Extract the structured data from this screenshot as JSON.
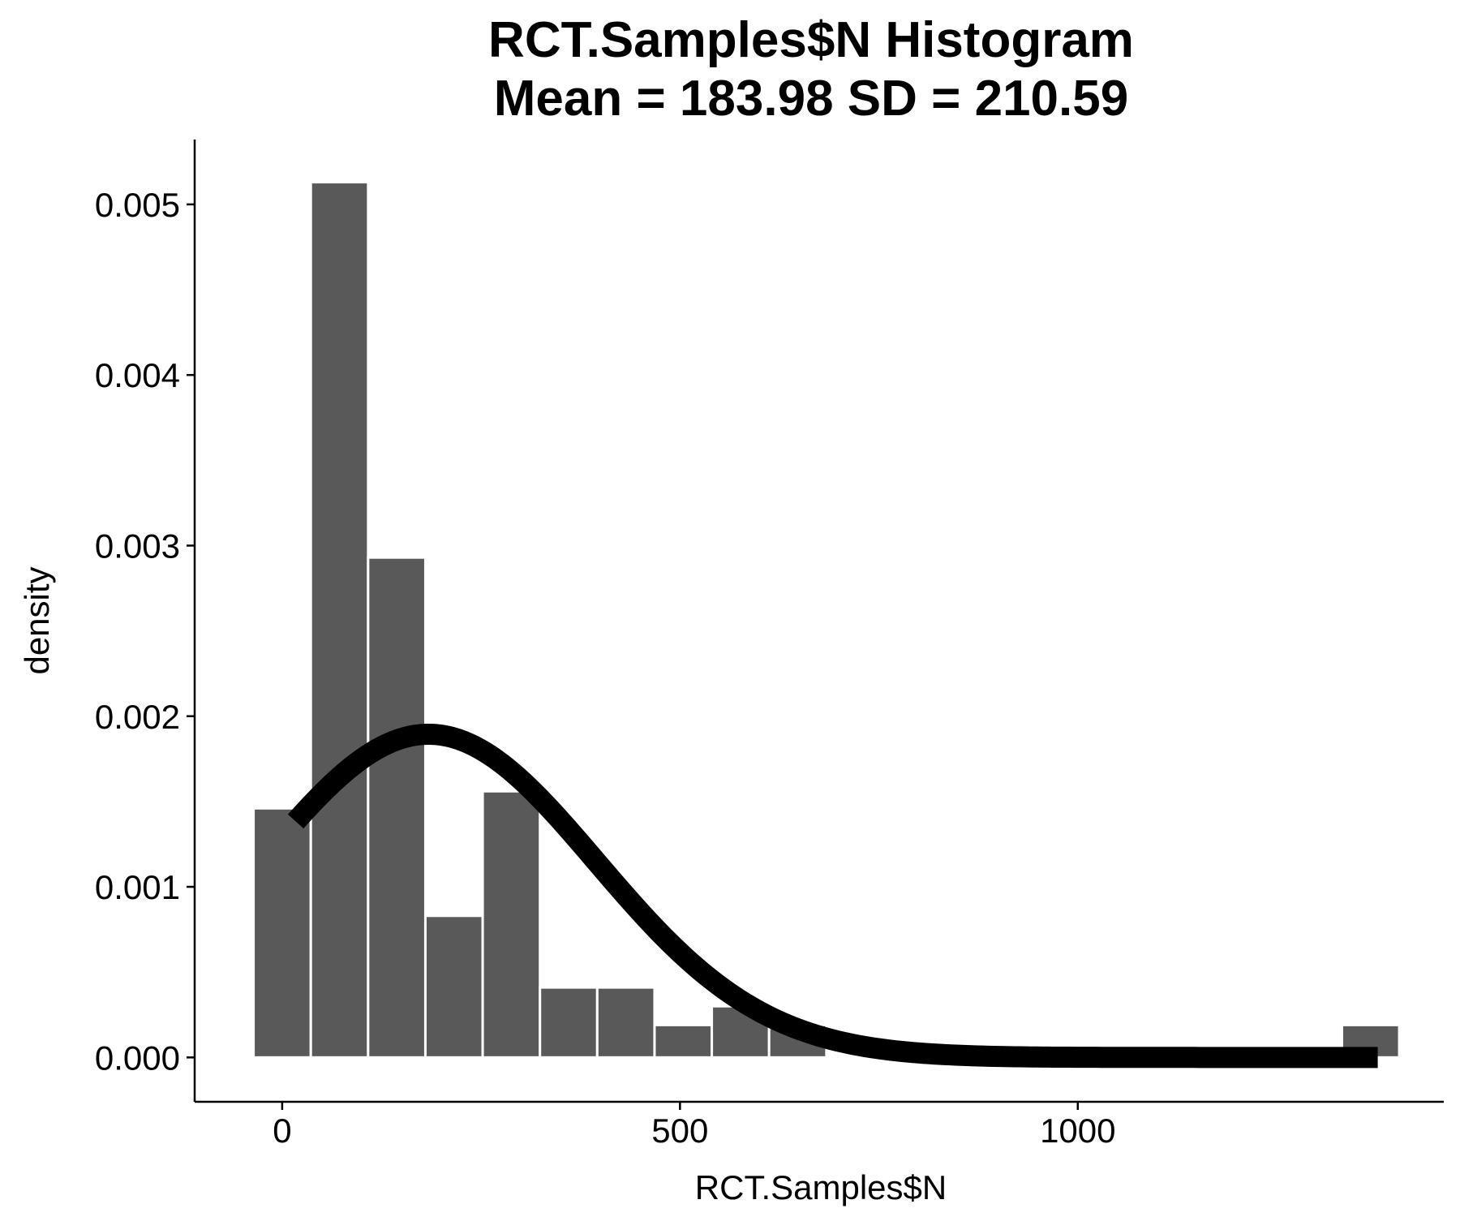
{
  "chart_data": {
    "type": "bar",
    "subtype": "histogram",
    "title": "RCT.Samples$N Histogram",
    "subtitle": "Mean = 183.98 SD = 210.59",
    "xlabel": "RCT.Samples$N",
    "ylabel": "density",
    "xlim": [
      -110,
      1460
    ],
    "ylim": [
      -0.00026,
      0.00538
    ],
    "x_ticks": [
      0,
      500,
      1000
    ],
    "x_tick_labels": [
      "0",
      "500",
      "1000"
    ],
    "y_ticks": [
      0,
      0.001,
      0.002,
      0.003,
      0.004,
      0.005
    ],
    "y_tick_labels": [
      "0.000",
      "0.001",
      "0.002",
      "0.003",
      "0.004",
      "0.005"
    ],
    "grid": false,
    "legend": "none",
    "bin_width": 72,
    "bins": [
      {
        "x_start": -36,
        "x_end": 36,
        "density": 0.00146
      },
      {
        "x_start": 36,
        "x_end": 108,
        "density": 0.00513
      },
      {
        "x_start": 108,
        "x_end": 180,
        "density": 0.00293
      },
      {
        "x_start": 180,
        "x_end": 252,
        "density": 0.00083
      },
      {
        "x_start": 252,
        "x_end": 324,
        "density": 0.00156
      },
      {
        "x_start": 324,
        "x_end": 396,
        "density": 0.00041
      },
      {
        "x_start": 396,
        "x_end": 468,
        "density": 0.00041
      },
      {
        "x_start": 468,
        "x_end": 540,
        "density": 0.00019
      },
      {
        "x_start": 540,
        "x_end": 612,
        "density": 0.0003
      },
      {
        "x_start": 612,
        "x_end": 684,
        "density": 0.00019
      },
      {
        "x_start": 1332,
        "x_end": 1404,
        "density": 0.00019
      }
    ],
    "normal_curve": {
      "mean": 183.98,
      "sd": 210.59,
      "x_range": [
        17,
        1377
      ],
      "color": "#000000"
    },
    "bar_color": "#595959"
  }
}
